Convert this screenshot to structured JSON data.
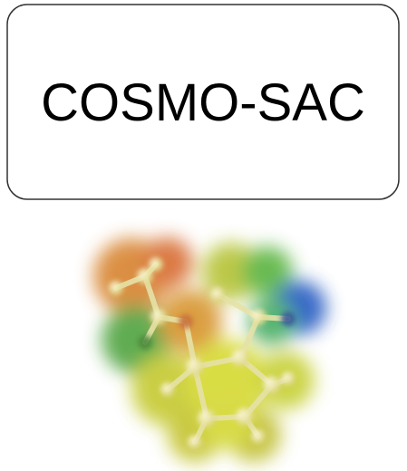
{
  "title": "COSMO-SAC"
}
